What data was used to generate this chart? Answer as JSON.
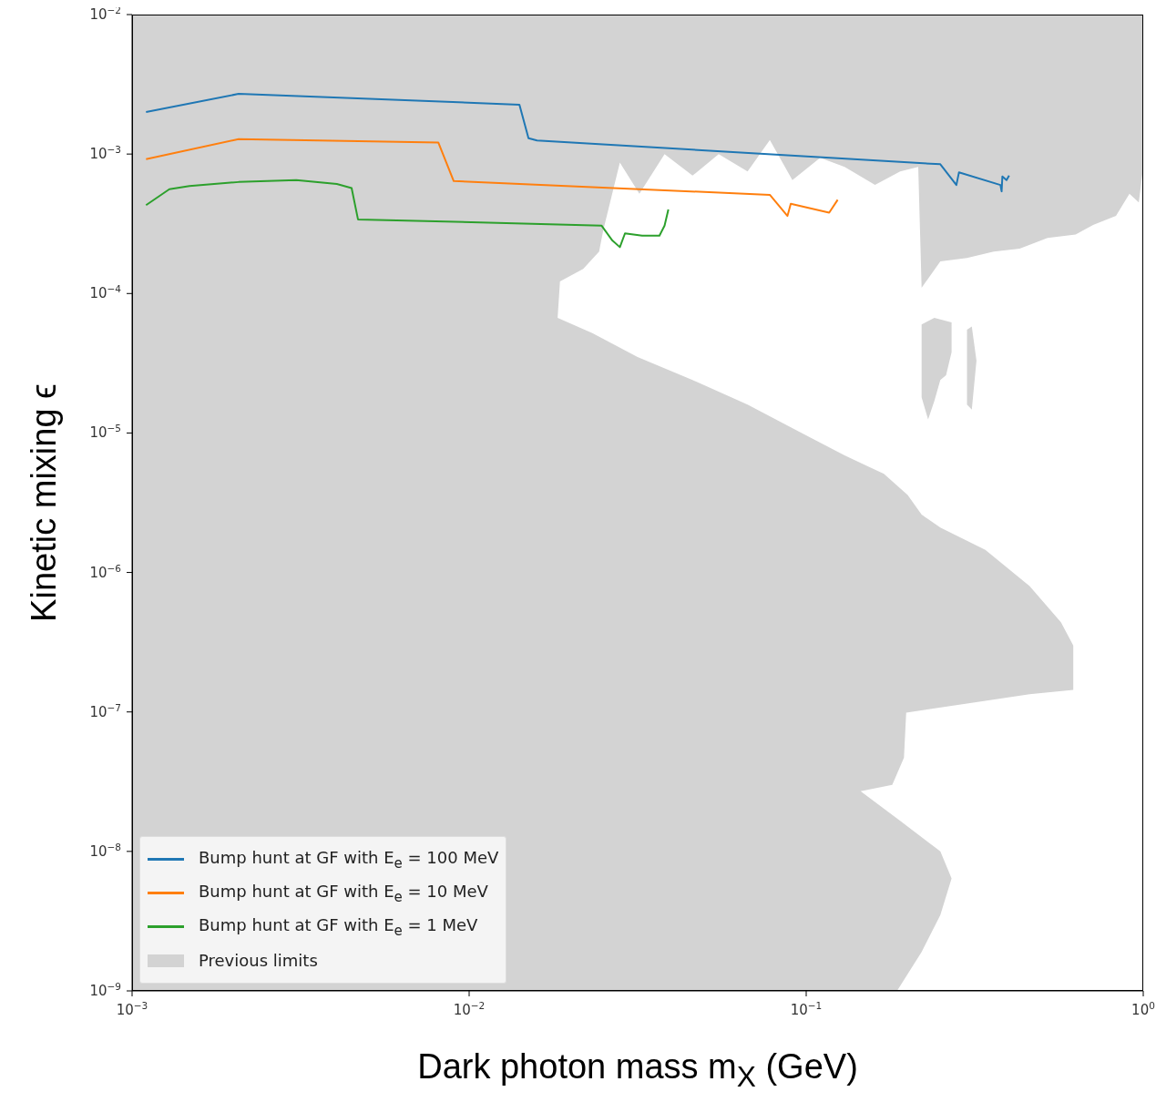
{
  "chart_data": {
    "type": "line",
    "xlabel": "Dark photon mass m$_{X}$ (GeV)",
    "ylabel": "Kinetic mixing ϵ",
    "log": "xy",
    "xlim": [
      0.001,
      1
    ],
    "ylim": [
      1e-09,
      0.01
    ],
    "xticks": [
      {
        "value": 0.001,
        "label": "10$^{−3}$"
      },
      {
        "value": 0.01,
        "label": "10$^{−2}$"
      },
      {
        "value": 0.1,
        "label": "10$^{−1}$"
      },
      {
        "value": 1,
        "label": "10$^{0}$"
      }
    ],
    "yticks": [
      {
        "value": 1e-09,
        "label": "10$^{−9}$"
      },
      {
        "value": 1e-08,
        "label": "10$^{−8}$"
      },
      {
        "value": 1e-07,
        "label": "10$^{−7}$"
      },
      {
        "value": 1e-06,
        "label": "10$^{−6}$"
      },
      {
        "value": 1e-05,
        "label": "10$^{−5}$"
      },
      {
        "value": 0.0001,
        "label": "10$^{−4}$"
      },
      {
        "value": 0.001,
        "label": "10$^{−3}$"
      },
      {
        "value": 0.01,
        "label": "10$^{−2}$"
      }
    ],
    "legend": "bottom left",
    "series": [
      {
        "name": "Previous limits",
        "type": "area",
        "color": "#d3d3d3",
        "x": [
          0.001,
          0.001,
          1,
          1,
          0.97,
          0.91,
          0.83,
          0.71,
          0.63,
          0.52,
          0.43,
          0.36,
          0.3,
          0.25,
          0.22,
          0.215,
          0.19,
          0.16,
          0.13,
          0.11,
          0.091,
          0.078,
          0.067,
          0.055,
          0.046,
          0.038,
          0.032,
          0.028,
          0.025,
          0.0243,
          0.0218,
          0.0186,
          0.0183,
          0.0232,
          0.0316,
          0.046,
          0.067,
          0.097,
          0.13,
          0.17,
          0.2,
          0.22,
          0.25,
          0.34,
          0.46,
          0.57,
          0.62,
          0.62,
          0.46,
          0.3,
          0.198,
          0.195,
          0.18,
          0.145,
          0.19,
          0.25,
          0.27,
          0.25,
          0.22,
          0.186,
          null,
          0.22,
          0.24,
          0.27,
          0.27,
          0.26,
          0.25,
          0.24,
          0.23,
          0.22,
          0.22,
          null,
          0.3,
          0.31,
          0.32,
          0.31,
          0.3,
          0.3
        ],
        "values": [
          1e-09,
          0.01,
          0.01,
          0.00081,
          0.00045,
          0.00052,
          0.00036,
          0.00031,
          0.000265,
          0.00025,
          0.00021,
          0.0002,
          0.00018,
          0.00017,
          0.00011,
          0.00081,
          0.00075,
          0.0006,
          0.00081,
          0.00094,
          0.00065,
          0.00126,
          0.00075,
          0.001,
          0.0007,
          0.001,
          0.00052,
          0.00087,
          0.000285,
          0.0002,
          0.00015,
          0.000122,
          6.7e-05,
          5.2e-05,
          3.5e-05,
          2.4e-05,
          1.6e-05,
          1e-05,
          6.9e-06,
          5.1e-06,
          3.6e-06,
          2.6e-06,
          2.1e-06,
          1.45e-06,
          8e-07,
          4.4e-07,
          3e-07,
          1.44e-07,
          1.34e-07,
          1.15e-07,
          9.9e-08,
          4.7e-08,
          3e-08,
          2.7e-08,
          1.66e-08,
          1e-08,
          6.4e-09,
          3.5e-09,
          1.9e-09,
          1e-09,
          null,
          6e-05,
          6.7e-05,
          6.2e-05,
          3.8e-05,
          2.6e-05,
          2.4e-05,
          1.7e-05,
          1.25e-05,
          1.8e-05,
          3.1e-05,
          null,
          5.5e-05,
          5.8e-05,
          3.3e-05,
          1.47e-05,
          1.6e-05,
          3.3e-05
        ]
      },
      {
        "name": "Bump hunt at GF with E$_{e}$ = 100 MeV",
        "color": "#1f77b4",
        "x": [
          0.0011,
          0.00207,
          0.0141,
          0.015,
          0.0159,
          0.25,
          0.279,
          0.284,
          0.377,
          0.38,
          0.382,
          0.393,
          0.4
        ],
        "values": [
          0.002,
          0.0027,
          0.00226,
          0.0013,
          0.00125,
          0.000845,
          0.0006,
          0.00074,
          0.0006,
          0.00054,
          0.00069,
          0.00065,
          0.0007
        ]
      },
      {
        "name": "Bump hunt at GF with E$_{e}$ = 10 MeV",
        "color": "#ff7f0e",
        "x": [
          0.0011,
          0.00207,
          0.0081,
          0.009,
          0.078,
          0.088,
          0.09,
          0.117,
          0.124
        ],
        "values": [
          0.00092,
          0.00128,
          0.00121,
          0.00064,
          0.00051,
          0.00036,
          0.00044,
          0.00038,
          0.00047
        ]
      },
      {
        "name": "Bump hunt at GF with E$_{e}$ = 1 MeV",
        "color": "#2ca02c",
        "x": [
          0.0011,
          0.00129,
          0.00148,
          0.00207,
          0.00307,
          0.00405,
          0.00448,
          0.00468,
          0.0247,
          0.0266,
          0.028,
          0.029,
          0.0326,
          0.0367,
          0.038,
          0.039
        ],
        "values": [
          0.00043,
          0.00056,
          0.00059,
          0.00063,
          0.00065,
          0.00061,
          0.00057,
          0.00034,
          0.000307,
          0.00024,
          0.000215,
          0.00027,
          0.00026,
          0.00026,
          0.000307,
          0.0004
        ]
      }
    ]
  }
}
